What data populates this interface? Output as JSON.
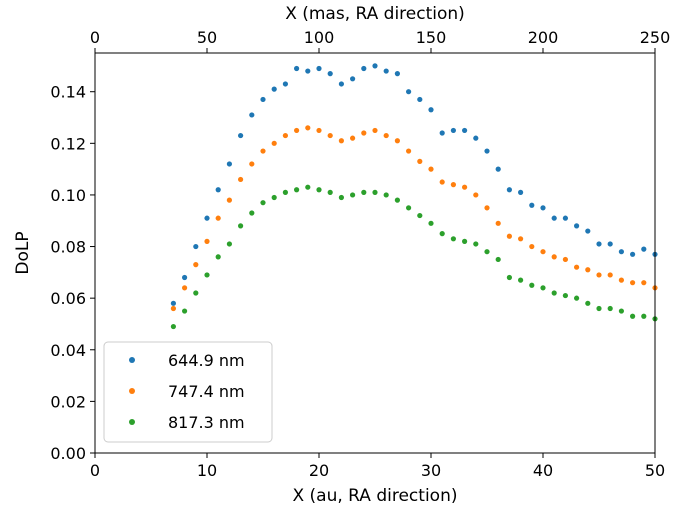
{
  "chart_data": {
    "type": "scatter",
    "xlabel": "X (au, RA direction)",
    "ylabel": "DoLP",
    "top_xlabel": "X (mas, RA direction)",
    "xlim": [
      0,
      50
    ],
    "ylim": [
      0,
      0.155
    ],
    "top_xlim": [
      0,
      250
    ],
    "xticks": [
      0,
      10,
      20,
      30,
      40,
      50
    ],
    "yticks": [
      0.0,
      0.02,
      0.04,
      0.06,
      0.08,
      0.1,
      0.12,
      0.14
    ],
    "ytick_labels": [
      "0.00",
      "0.02",
      "0.04",
      "0.06",
      "0.08",
      "0.10",
      "0.12",
      "0.14"
    ],
    "top_xticks": [
      0,
      50,
      100,
      150,
      200,
      250
    ],
    "grid": false,
    "legend_position": "lower-left",
    "x": [
      7,
      8,
      9,
      10,
      11,
      12,
      13,
      14,
      15,
      16,
      17,
      18,
      19,
      20,
      21,
      22,
      23,
      24,
      25,
      26,
      27,
      28,
      29,
      30,
      31,
      32,
      33,
      34,
      35,
      36,
      37,
      38,
      39,
      40,
      41,
      42,
      43,
      44,
      45,
      46,
      47,
      48,
      49,
      50
    ],
    "series": [
      {
        "name": "644.9 nm",
        "color": "#1f77b4",
        "values": [
          0.058,
          0.068,
          0.08,
          0.091,
          0.102,
          0.112,
          0.123,
          0.131,
          0.137,
          0.141,
          0.143,
          0.149,
          0.148,
          0.149,
          0.147,
          0.143,
          0.145,
          0.149,
          0.15,
          0.148,
          0.147,
          0.14,
          0.137,
          0.133,
          0.124,
          0.125,
          0.125,
          0.122,
          0.117,
          0.11,
          0.102,
          0.101,
          0.096,
          0.095,
          0.091,
          0.091,
          0.088,
          0.086,
          0.081,
          0.081,
          0.078,
          0.077,
          0.079,
          0.077
        ]
      },
      {
        "name": "747.4 nm",
        "color": "#ff7f0e",
        "values": [
          0.056,
          0.064,
          0.073,
          0.082,
          0.091,
          0.098,
          0.106,
          0.112,
          0.117,
          0.12,
          0.123,
          0.125,
          0.126,
          0.125,
          0.123,
          0.121,
          0.122,
          0.124,
          0.125,
          0.123,
          0.121,
          0.117,
          0.113,
          0.11,
          0.105,
          0.104,
          0.103,
          0.1,
          0.095,
          0.089,
          0.084,
          0.083,
          0.08,
          0.078,
          0.076,
          0.075,
          0.072,
          0.071,
          0.069,
          0.069,
          0.067,
          0.066,
          0.066,
          0.064
        ]
      },
      {
        "name": "817.3 nm",
        "color": "#2ca02c",
        "values": [
          0.049,
          0.055,
          0.062,
          0.069,
          0.076,
          0.081,
          0.088,
          0.093,
          0.097,
          0.099,
          0.101,
          0.102,
          0.103,
          0.102,
          0.101,
          0.099,
          0.1,
          0.101,
          0.101,
          0.1,
          0.098,
          0.095,
          0.092,
          0.089,
          0.085,
          0.083,
          0.082,
          0.081,
          0.078,
          0.075,
          0.068,
          0.067,
          0.065,
          0.064,
          0.062,
          0.061,
          0.06,
          0.058,
          0.056,
          0.056,
          0.055,
          0.053,
          0.053,
          0.052
        ]
      }
    ]
  }
}
